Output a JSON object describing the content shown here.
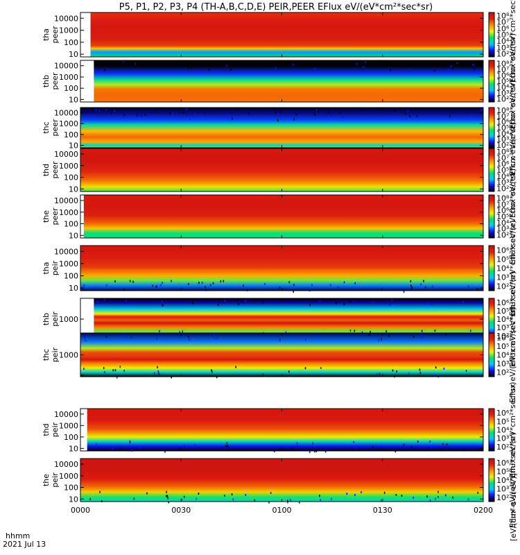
{
  "figure": {
    "title": "P5, P1, P2, P3, P4 (TH-A,B,C,D,E) PEIR,PEER EFlux eV/(eV*cm²*sec*sr)",
    "x_axis_title": "hhmm",
    "date_label": "2021 Jul 13",
    "colorbar_units_label": "[eV/(cm²-s-sr-eV)]",
    "colorbar_repeat_label": "Eflux eV/(eV*cm²*sec*sr)"
  },
  "colors": {
    "colormap": [
      "#000000",
      "#1010ff",
      "#00c8ff",
      "#00e070",
      "#f0f000",
      "#ff9000",
      "#e02010",
      "#c81010"
    ]
  },
  "chart_data": {
    "type": "heatmap",
    "x_ticks": [
      "0000",
      "0030",
      "0100",
      "0130",
      "0200"
    ],
    "x_range": [
      0,
      120
    ],
    "panels": [
      {
        "id": "tha_peer",
        "ylabel1": "tha",
        "ylabel2": "peer",
        "y_ticks": [
          "10",
          "100",
          "1000",
          "10000"
        ],
        "yrange": [
          6,
          30000
        ],
        "data_start": 3,
        "bands": [
          [
            5,
            4.5
          ],
          [
            15,
            3.5
          ],
          [
            30,
            5.8
          ],
          [
            50,
            6.9
          ],
          [
            200,
            7.4
          ],
          [
            2000,
            7.5
          ],
          [
            10000,
            7.2
          ],
          [
            30000,
            7.0
          ]
        ],
        "cb_ticks": [
          "10²",
          "10³",
          "10⁴",
          "10⁵",
          "10⁶",
          "10⁷",
          "10⁸"
        ],
        "cb_range": [
          2,
          8
        ]
      },
      {
        "id": "thb_peer",
        "ylabel1": "thb",
        "ylabel2": "peer",
        "y_ticks": [
          "10",
          "100",
          "1000",
          "10000"
        ],
        "yrange": [
          6,
          30000
        ],
        "data_start": 4,
        "bands": [
          [
            5,
            6.5
          ],
          [
            20,
            6.6
          ],
          [
            80,
            6.5
          ],
          [
            200,
            5.2
          ],
          [
            600,
            4.3
          ],
          [
            2000,
            3.0
          ],
          [
            10000,
            2.0
          ],
          [
            30000,
            1.5
          ]
        ],
        "cb_ticks": [
          "10²",
          "10³",
          "10⁴",
          "10⁵",
          "10⁶",
          "10⁷",
          "10⁸"
        ],
        "cb_range": [
          2,
          8
        ]
      },
      {
        "id": "thc_peer",
        "ylabel1": "thc",
        "ylabel2": "peer",
        "y_ticks": [
          "10",
          "100",
          "1000",
          "10000"
        ],
        "yrange": [
          6,
          30000
        ],
        "data_start": 0,
        "bands": [
          [
            5,
            5.0
          ],
          [
            10,
            4.0
          ],
          [
            20,
            6.0
          ],
          [
            60,
            6.6
          ],
          [
            200,
            5.9
          ],
          [
            800,
            4.2
          ],
          [
            2000,
            3.1
          ],
          [
            10000,
            2.4
          ],
          [
            30000,
            2.1
          ]
        ],
        "cb_ticks": [
          "10²",
          "10³",
          "10⁴",
          "10⁵",
          "10⁶",
          "10⁷",
          "10⁸"
        ],
        "cb_range": [
          2,
          8
        ]
      },
      {
        "id": "thd_peer",
        "ylabel1": "thd",
        "ylabel2": "peer",
        "y_ticks": [
          "10",
          "100",
          "1000",
          "10000"
        ],
        "yrange": [
          6,
          30000
        ],
        "data_start": 0,
        "bands": [
          [
            5,
            4.8
          ],
          [
            15,
            5.6
          ],
          [
            60,
            6.6
          ],
          [
            300,
            7.1
          ],
          [
            2000,
            7.6
          ],
          [
            10000,
            7.6
          ],
          [
            30000,
            7.4
          ]
        ],
        "cb_ticks": [
          "10²",
          "10³",
          "10⁴",
          "10⁵",
          "10⁶",
          "10⁷",
          "10⁸"
        ],
        "cb_range": [
          2,
          8
        ]
      },
      {
        "id": "the_peer",
        "ylabel1": "the",
        "ylabel2": "peer",
        "y_ticks": [
          "10",
          "100",
          "1000",
          "10000"
        ],
        "yrange": [
          6,
          30000
        ],
        "data_start": 1,
        "bands": [
          [
            5,
            4.6
          ],
          [
            15,
            4.5
          ],
          [
            40,
            5.8
          ],
          [
            100,
            6.6
          ],
          [
            500,
            7.2
          ],
          [
            3000,
            7.6
          ],
          [
            30000,
            7.4
          ]
        ],
        "cb_ticks": [
          "10²",
          "10³",
          "10⁴",
          "10⁵",
          "10⁶",
          "10⁷",
          "10⁸"
        ],
        "cb_range": [
          2,
          8
        ]
      },
      {
        "id": "tha_peir",
        "ylabel1": "tha",
        "ylabel2": "peir",
        "y_ticks": [
          "10",
          "100",
          "1000",
          "10000"
        ],
        "yrange": [
          6,
          30000
        ],
        "data_start": 0,
        "bands": [
          [
            5,
            2.2
          ],
          [
            15,
            3.0
          ],
          [
            40,
            4.2
          ],
          [
            100,
            5.0
          ],
          [
            500,
            5.7
          ],
          [
            3000,
            6.0
          ],
          [
            30000,
            6.2
          ]
        ],
        "cb_ticks": [
          "10²",
          "10³",
          "10⁴",
          "10⁵",
          "10⁶"
        ],
        "cb_range": [
          2,
          6.5
        ]
      },
      {
        "id": "thb_peir",
        "ylabel1": "thb",
        "ylabel2": "peir",
        "y_ticks": [
          "1000"
        ],
        "yrange": [
          100,
          10000
        ],
        "data_start": 4,
        "bands": [
          [
            100,
            2.0
          ],
          [
            160,
            3.6
          ],
          [
            250,
            4.2
          ],
          [
            400,
            5.3
          ],
          [
            650,
            6.2
          ],
          [
            900,
            5.5
          ],
          [
            1300,
            6.0
          ],
          [
            1800,
            4.6
          ],
          [
            3000,
            3.4
          ],
          [
            6000,
            2.4
          ],
          [
            10000,
            2.0
          ]
        ],
        "cb_ticks": [
          "10²",
          "10³",
          "10⁴",
          "10⁵",
          "10⁶"
        ],
        "cb_range": [
          2,
          6.5
        ]
      },
      {
        "id": "thc_peir",
        "ylabel1": "thc",
        "ylabel2": "peir",
        "y_ticks": [
          "1000"
        ],
        "yrange": [
          100,
          10000
        ],
        "data_start": 0,
        "bands": [
          [
            100,
            2.0
          ],
          [
            160,
            3.5
          ],
          [
            250,
            4.6
          ],
          [
            400,
            5.3
          ],
          [
            600,
            6.2
          ],
          [
            900,
            5.7
          ],
          [
            1300,
            5.6
          ],
          [
            2000,
            4.4
          ],
          [
            4000,
            3.0
          ],
          [
            10000,
            2.2
          ]
        ],
        "cb_ticks": [
          "10²",
          "10³",
          "10⁴",
          "10⁵",
          "10⁶"
        ],
        "cb_range": [
          2,
          6.5
        ]
      },
      {
        "id": "thd_peir",
        "ylabel1": "thd",
        "ylabel2": "peir",
        "y_ticks": [
          "10",
          "100",
          "1000",
          "10000"
        ],
        "yrange": [
          6,
          30000
        ],
        "data_start": 2,
        "bands": [
          [
            5,
            1.8
          ],
          [
            15,
            2.6
          ],
          [
            40,
            3.6
          ],
          [
            100,
            4.6
          ],
          [
            500,
            5.6
          ],
          [
            3000,
            6.1
          ],
          [
            30000,
            6.2
          ]
        ],
        "cb_ticks": [
          "10²",
          "10³",
          "10⁴",
          "10⁵",
          "10⁶"
        ],
        "cb_range": [
          2,
          6.5
        ]
      },
      {
        "id": "the_peir",
        "ylabel1": "the",
        "ylabel2": "peir",
        "y_ticks": [
          "10",
          "100",
          "1000",
          "10000"
        ],
        "yrange": [
          6,
          30000
        ],
        "data_start": 0,
        "bands": [
          [
            5,
            3.6
          ],
          [
            15,
            4.0
          ],
          [
            40,
            4.8
          ],
          [
            100,
            5.4
          ],
          [
            500,
            6.0
          ],
          [
            3000,
            6.3
          ],
          [
            30000,
            6.3
          ]
        ],
        "cb_ticks": [
          "10²",
          "10³",
          "10⁴",
          "10⁵",
          "10⁶"
        ],
        "cb_range": [
          2,
          6.5
        ]
      }
    ]
  }
}
